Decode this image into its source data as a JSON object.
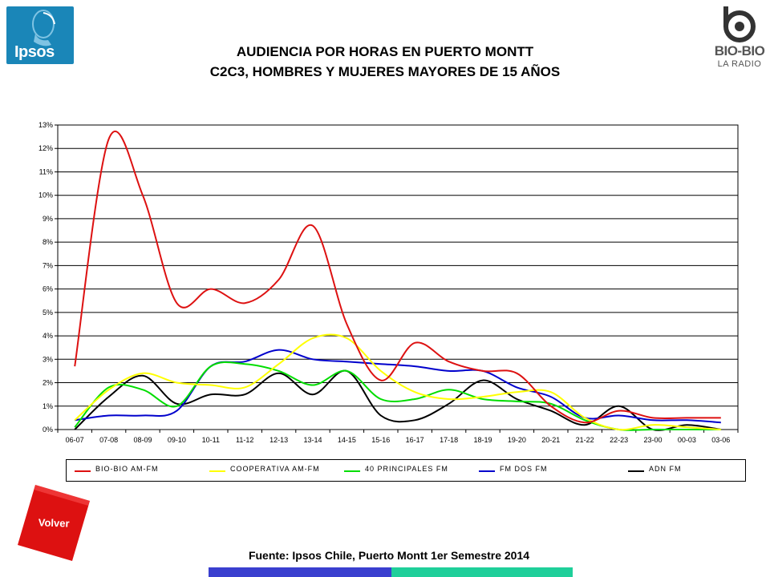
{
  "logos": {
    "left_text": "Ipsos",
    "right_text": "BIO-BIO",
    "right_subtext": "LA RADIO"
  },
  "title_line1": "AUDIENCIA POR HORAS EN PUERTO MONTT",
  "title_line2": "C2C3, HOMBRES Y MUJERES MAYORES DE 15 AÑOS",
  "chart_data": {
    "type": "line",
    "categories": [
      "06-07",
      "07-08",
      "08-09",
      "09-10",
      "10-11",
      "11-12",
      "12-13",
      "13-14",
      "14-15",
      "15-16",
      "16-17",
      "17-18",
      "18-19",
      "19-20",
      "20-21",
      "21-22",
      "22-23",
      "23-00",
      "00-03",
      "03-06"
    ],
    "ylim": [
      0,
      13
    ],
    "y_ticks": [
      "0%",
      "1%",
      "2%",
      "3%",
      "4%",
      "5%",
      "6%",
      "7%",
      "8%",
      "9%",
      "10%",
      "11%",
      "12%",
      "13%"
    ],
    "grid": true,
    "legend_position": "bottom",
    "series": [
      {
        "name": "BIO-BIO AM-FM",
        "color": "#dd1111",
        "values": [
          2.7,
          12.4,
          10.0,
          5.4,
          6.0,
          5.4,
          6.4,
          8.7,
          4.5,
          2.1,
          3.7,
          2.9,
          2.5,
          2.4,
          1.0,
          0.3,
          0.8,
          0.5,
          0.5,
          0.5
        ]
      },
      {
        "name": "COOPERATIVA AM-FM",
        "color": "#ffff00",
        "values": [
          0.4,
          1.7,
          2.4,
          2.0,
          1.9,
          1.8,
          2.8,
          3.9,
          3.9,
          2.5,
          1.6,
          1.3,
          1.4,
          1.6,
          1.6,
          0.5,
          0.0,
          0.2,
          0.1,
          0.0
        ]
      },
      {
        "name": "40 PRINCIPALES FM",
        "color": "#00dd00",
        "values": [
          0.1,
          1.8,
          1.7,
          1.0,
          2.7,
          2.8,
          2.5,
          1.9,
          2.5,
          1.3,
          1.3,
          1.7,
          1.3,
          1.2,
          1.1,
          0.4,
          0.0,
          0.0,
          0.0,
          0.0
        ]
      },
      {
        "name": "FM DOS FM",
        "color": "#0000cc",
        "values": [
          0.4,
          0.6,
          0.6,
          0.8,
          2.7,
          2.9,
          3.4,
          3.0,
          2.9,
          2.8,
          2.7,
          2.5,
          2.5,
          1.8,
          1.4,
          0.5,
          0.6,
          0.4,
          0.4,
          0.3
        ]
      },
      {
        "name": "ADN FM",
        "color": "#000000",
        "values": [
          0.0,
          1.4,
          2.3,
          1.1,
          1.5,
          1.5,
          2.4,
          1.5,
          2.5,
          0.6,
          0.4,
          1.1,
          2.1,
          1.3,
          0.8,
          0.2,
          1.0,
          0.0,
          0.2,
          0.0
        ]
      }
    ]
  },
  "button": {
    "label": "Volver"
  },
  "source": "Fuente: Ipsos Chile, Puerto Montt 1er Semestre 2014",
  "colors": {
    "ipsos": "#1a86b8",
    "volver": "#dd1111",
    "bar_blue": "#3a3fcf",
    "bar_green": "#1fcf9a"
  }
}
